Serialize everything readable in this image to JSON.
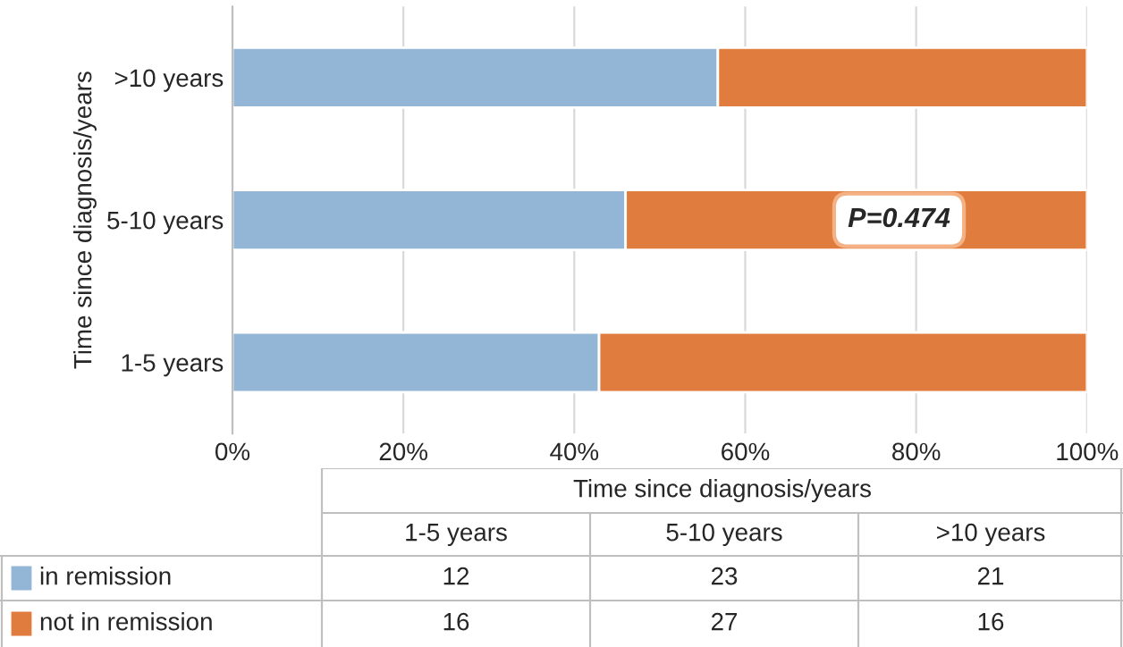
{
  "chart_data": [
    {
      "type": "bar",
      "orientation": "horizontal",
      "stacked": true,
      "categories": [
        ">10 years",
        "5-10 years",
        "1-5 years"
      ],
      "ylabel": "Time since diagnosis/years",
      "series": [
        {
          "color": "#93b5d6",
          "values": [
            56.8,
            46.0,
            42.9
          ]
        },
        {
          "color": "#e07c3e",
          "values": [
            43.2,
            54.0,
            57.1
          ]
        }
      ],
      "xlim": [
        0,
        100
      ],
      "xticks": [
        {
          "value": 0,
          "label": "0%"
        },
        {
          "value": 20,
          "label": "20%"
        },
        {
          "value": 40,
          "label": "40%"
        },
        {
          "value": 60,
          "label": "60%"
        },
        {
          "value": 80,
          "label": "80%"
        },
        {
          "value": 100,
          "label": "100%"
        }
      ],
      "grid": "x",
      "annotations": [
        "P=0.474"
      ]
    },
    {
      "type": "other",
      "title": "Time since diagnosis/years",
      "categories": [
        "1-5 years",
        "5-10 years",
        ">10 years"
      ],
      "series": [
        {
          "name": "in remission",
          "color": "#93b5d6",
          "values": [
            12,
            23,
            21
          ]
        },
        {
          "name": "not in remission",
          "color": "#e07c3e",
          "values": [
            16,
            27,
            16
          ]
        }
      ],
      "data_labels": true,
      "legend": "left"
    }
  ]
}
